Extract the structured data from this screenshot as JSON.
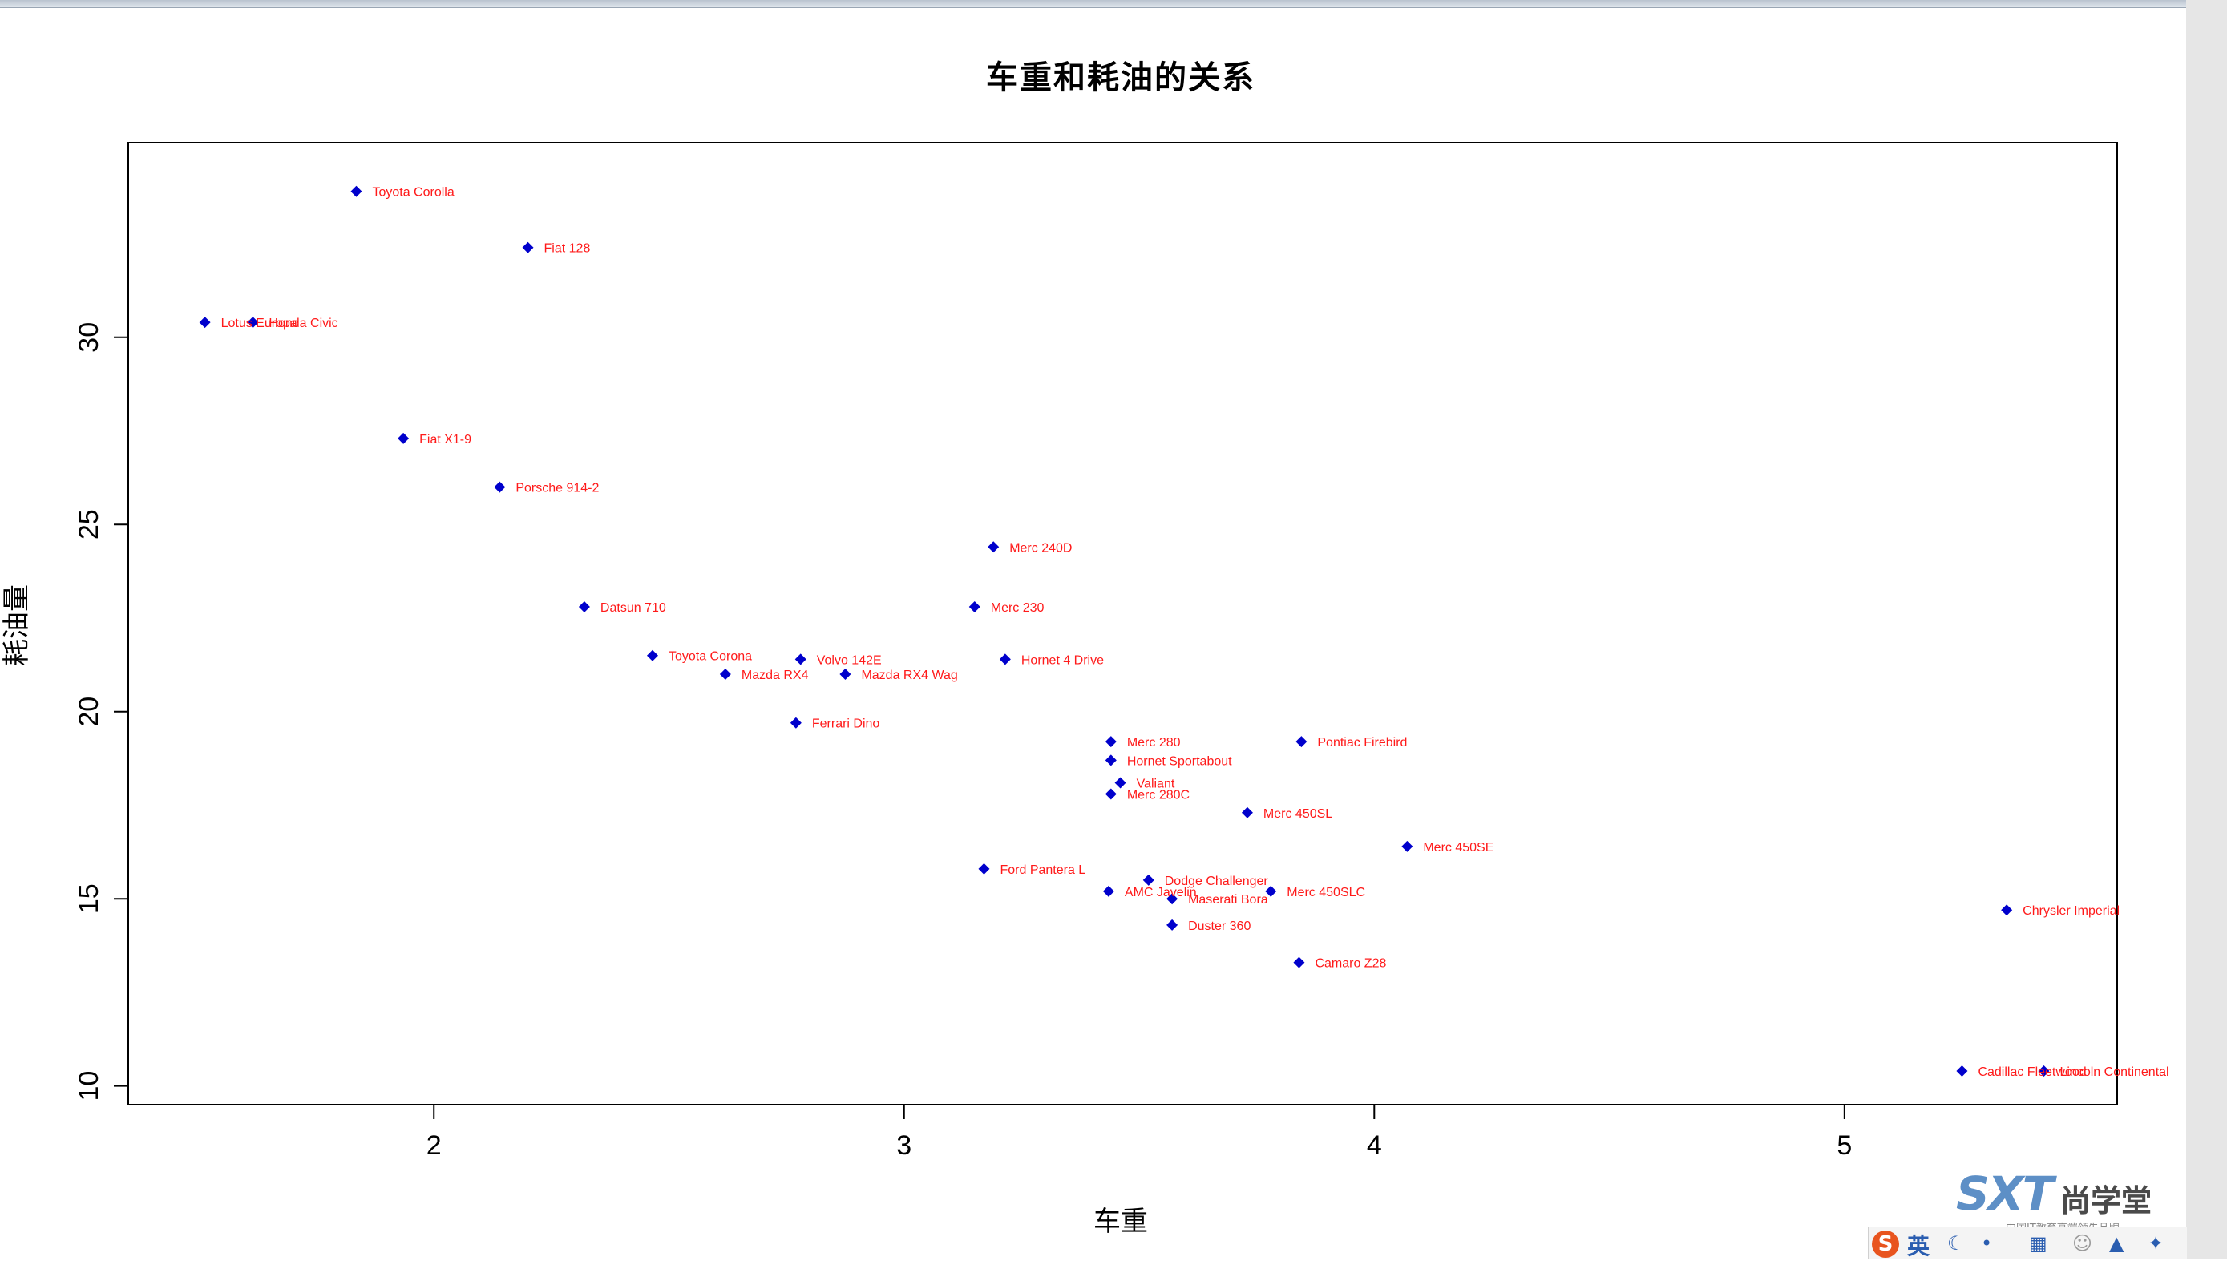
{
  "chart_data": {
    "type": "scatter",
    "title": "车重和耗油的关系",
    "xlabel": "车重",
    "ylabel": "耗油量",
    "xlim": [
      1.35,
      5.58
    ],
    "ylim": [
      9.5,
      35.2
    ],
    "xticks": [
      2,
      3,
      4,
      5
    ],
    "yticks": [
      10,
      15,
      20,
      25,
      30
    ],
    "point_color": "#0000cc",
    "label_color": "#ff1a1a",
    "grid": false,
    "points": [
      {
        "label": "Toyota Corolla",
        "x": 1.835,
        "y": 33.9
      },
      {
        "label": "Fiat 128",
        "x": 2.2,
        "y": 32.4
      },
      {
        "label": "Lotus Europa",
        "x": 1.513,
        "y": 30.4
      },
      {
        "label": "Honda Civic",
        "x": 1.615,
        "y": 30.4
      },
      {
        "label": "Fiat X1-9",
        "x": 1.935,
        "y": 27.3
      },
      {
        "label": "Porsche 914-2",
        "x": 2.14,
        "y": 26.0
      },
      {
        "label": "Merc 240D",
        "x": 3.19,
        "y": 24.4
      },
      {
        "label": "Datsun 710",
        "x": 2.32,
        "y": 22.8
      },
      {
        "label": "Merc 230",
        "x": 3.15,
        "y": 22.8
      },
      {
        "label": "Toyota Corona",
        "x": 2.465,
        "y": 21.5
      },
      {
        "label": "Volvo 142E",
        "x": 2.78,
        "y": 21.4
      },
      {
        "label": "Hornet 4 Drive",
        "x": 3.215,
        "y": 21.4
      },
      {
        "label": "Mazda RX4",
        "x": 2.62,
        "y": 21.0
      },
      {
        "label": "Mazda RX4 Wag",
        "x": 2.875,
        "y": 21.0
      },
      {
        "label": "Ferrari Dino",
        "x": 2.77,
        "y": 19.7
      },
      {
        "label": "Merc 280",
        "x": 3.44,
        "y": 19.2
      },
      {
        "label": "Pontiac Firebird",
        "x": 3.845,
        "y": 19.2
      },
      {
        "label": "Hornet Sportabout",
        "x": 3.44,
        "y": 18.7
      },
      {
        "label": "Valiant",
        "x": 3.46,
        "y": 18.1
      },
      {
        "label": "Merc 280C",
        "x": 3.44,
        "y": 17.8
      },
      {
        "label": "Merc 450SL",
        "x": 3.73,
        "y": 17.3
      },
      {
        "label": "Merc 450SE",
        "x": 4.07,
        "y": 16.4
      },
      {
        "label": "Ford Pantera L",
        "x": 3.17,
        "y": 15.8
      },
      {
        "label": "Dodge Challenger",
        "x": 3.52,
        "y": 15.5
      },
      {
        "label": "AMC Javelin",
        "x": 3.435,
        "y": 15.2
      },
      {
        "label": "Merc 450SLC",
        "x": 3.78,
        "y": 15.2
      },
      {
        "label": "Maserati Bora",
        "x": 3.57,
        "y": 15.0
      },
      {
        "label": "Chrysler Imperial",
        "x": 5.345,
        "y": 14.7
      },
      {
        "label": "Duster 360",
        "x": 3.57,
        "y": 14.3
      },
      {
        "label": "Camaro Z28",
        "x": 3.84,
        "y": 13.3
      },
      {
        "label": "Cadillac Fleetwood",
        "x": 5.25,
        "y": 10.4
      },
      {
        "label": "Lincoln Continental",
        "x": 5.424,
        "y": 10.4
      }
    ]
  },
  "watermark": {
    "brand_latin": "SXT",
    "brand_cn": "尚学堂",
    "tagline": "中国IT教育高端领先品牌"
  },
  "ime_toolbar": {
    "logo": "S",
    "language": "英",
    "icons": [
      "moon-icon",
      "punctuation-icon",
      "keyboard-icon",
      "user-icon",
      "shirt-icon",
      "wrench-icon"
    ]
  }
}
